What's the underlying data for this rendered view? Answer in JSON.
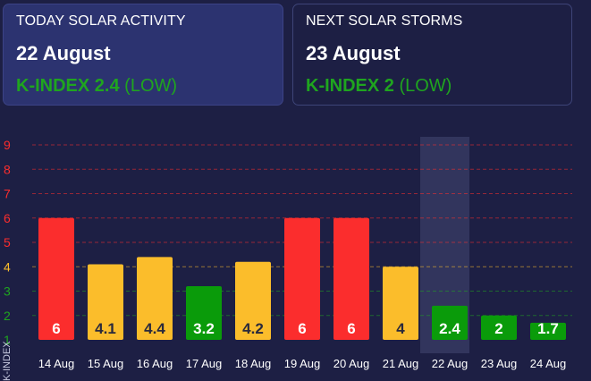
{
  "today": {
    "heading": "TODAY SOLAR ACTIVITY",
    "date": "22 August",
    "kindex_label": "K-INDEX 2.4",
    "level": "(LOW)"
  },
  "next": {
    "heading": "NEXT SOLAR STORMS",
    "date": "23 August",
    "kindex_label": "K-INDEX 2",
    "level": "(LOW)"
  },
  "colors": {
    "red": "#fb2d2d",
    "yellow": "#fbbd2b",
    "green": "#0a9b0a",
    "highlight": "#3a3d66"
  },
  "chart_data": {
    "type": "bar",
    "ylabel": "K-INDEX",
    "ylim": [
      1,
      9
    ],
    "yticks": [
      9,
      8,
      7,
      6,
      5,
      4,
      3,
      2,
      1
    ],
    "ytick_colors": {
      "9": "#fb2d2d",
      "8": "#fb2d2d",
      "7": "#fb2d2d",
      "6": "#fb2d2d",
      "5": "#fb2d2d",
      "4": "#fbbd2b",
      "3": "#1fa51f",
      "2": "#1fa51f",
      "1": "#1fa51f"
    },
    "highlight_category": "22 Aug",
    "categories": [
      "14 Aug",
      "15 Aug",
      "16 Aug",
      "17 Aug",
      "18 Aug",
      "19 Aug",
      "20 Aug",
      "21 Aug",
      "22 Aug",
      "23 Aug",
      "24 Aug"
    ],
    "values": [
      6,
      4.1,
      4.4,
      3.2,
      4.2,
      6,
      6,
      4,
      2.4,
      2,
      1.7
    ],
    "labels": [
      "6",
      "4.1",
      "4.4",
      "3.2",
      "4.2",
      "6",
      "6",
      "4",
      "2.4",
      "2",
      "1.7"
    ],
    "bar_levels": [
      "red",
      "yellow",
      "yellow",
      "green",
      "yellow",
      "red",
      "red",
      "yellow",
      "green",
      "green",
      "green"
    ]
  }
}
